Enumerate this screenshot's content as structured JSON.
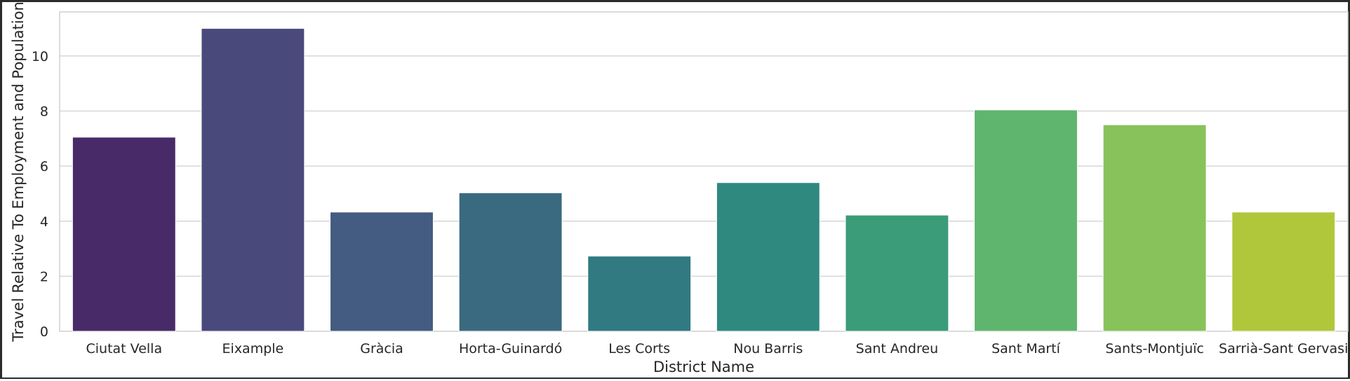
{
  "chart_data": {
    "type": "bar",
    "title": "",
    "xlabel": "District Name",
    "ylabel": "Travel Relative To Employment and Population",
    "categories": [
      "Ciutat Vella",
      "Eixample",
      "Gràcia",
      "Horta-Guinardó",
      "Les Corts",
      "Nou Barris",
      "Sant Andreu",
      "Sant Martí",
      "Sants-Montjuïc",
      "Sarrià-Sant Gervasi"
    ],
    "values": [
      7.05,
      11.0,
      4.33,
      5.03,
      2.73,
      5.4,
      4.22,
      8.04,
      7.5,
      4.33
    ],
    "colors": [
      "#482a68",
      "#4a497c",
      "#445b82",
      "#3a6a80",
      "#317a81",
      "#2f897f",
      "#3a9c78",
      "#60b56e",
      "#87c25a",
      "#b0c73c"
    ],
    "ylim": [
      0,
      11.6
    ],
    "yticks": [
      "0",
      "2",
      "4",
      "6",
      "8",
      "10"
    ],
    "grid": true,
    "legend": "none",
    "background": "#ffffff",
    "grid_color": "#d6d6d6",
    "spine_color": "#d0d0d0"
  }
}
